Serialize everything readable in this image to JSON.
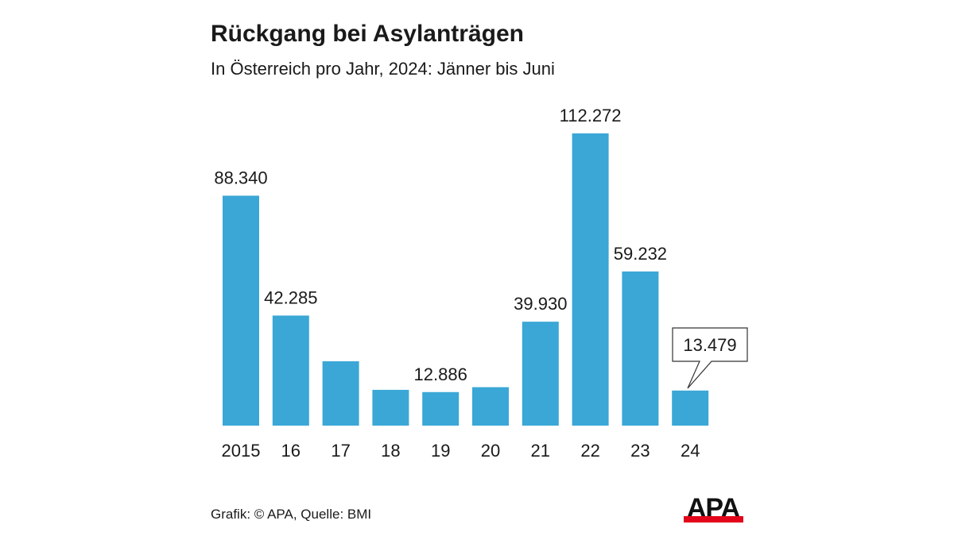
{
  "chart_data": {
    "type": "bar",
    "title": "Rückgang bei Asylanträgen",
    "subtitle": "In Österreich pro Jahr, 2024: Jänner bis Juni",
    "categories": [
      "2015",
      "16",
      "17",
      "18",
      "19",
      "20",
      "21",
      "22",
      "23",
      "24"
    ],
    "values": [
      88340,
      42285,
      24735,
      13746,
      12886,
      14775,
      39930,
      112272,
      59232,
      13479
    ],
    "data_labels": [
      "88.340",
      "42.285",
      "",
      "",
      "12.886",
      "",
      "39.930",
      "112.272",
      "59.232",
      "13.479"
    ],
    "callout_index": 9,
    "xlabel": "",
    "ylabel": "",
    "ylim": [
      0,
      112272
    ],
    "grid": false,
    "bar_color": "#3aa7d6"
  },
  "source": "Grafik: © APA, Quelle: BMI",
  "logo": {
    "text": "APA",
    "text_color": "#111111",
    "bar_color": "#e3061b"
  }
}
